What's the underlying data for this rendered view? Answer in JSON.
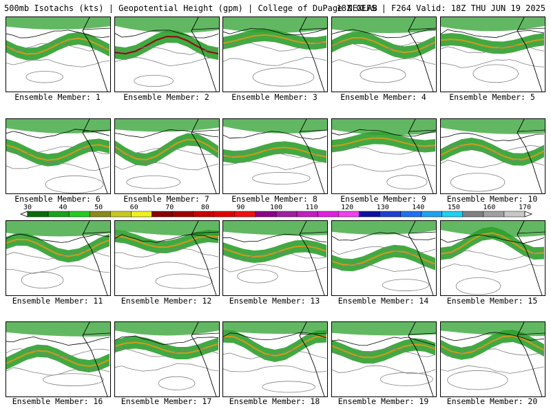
{
  "header": {
    "left": "500mb Isotachs (kts) | Geopotential Height (gpm) | College of DuPage NEXLAB",
    "right": "18Z GEFS | F264 Valid: 18Z THU JUN 19 2025"
  },
  "panel_label_prefix": "Ensemble Member:",
  "members": [
    "1",
    "2",
    "3",
    "4",
    "5",
    "6",
    "7",
    "8",
    "9",
    "10",
    "11",
    "12",
    "13",
    "14",
    "15",
    "16",
    "17",
    "18",
    "19",
    "20"
  ],
  "legend": {
    "ticks": [
      "30",
      "40",
      "50",
      "60",
      "70",
      "80",
      "90",
      "100",
      "110",
      "120",
      "130",
      "140",
      "150",
      "160",
      "170"
    ],
    "colors": [
      "#0a6b0a",
      "#1aa31a",
      "#22cc22",
      "#8a8a1c",
      "#c8c822",
      "#f0f020",
      "#8b0000",
      "#a00000",
      "#c80000",
      "#e00000",
      "#f01010",
      "#8a008a",
      "#a020a0",
      "#c020c0",
      "#e020e0",
      "#f040f0",
      "#1010a0",
      "#2040d0",
      "#2070f0",
      "#20a0f0",
      "#20d0f0",
      "#808080",
      "#a0a0a0",
      "#c8c8c8"
    ]
  },
  "colors": {
    "jet_core": "#c89b1e",
    "jet_max": "#8b1010",
    "isotach_fill": "#2ea02e",
    "isotach_dark": "#0a6b0a",
    "height_contour": "#808080"
  }
}
